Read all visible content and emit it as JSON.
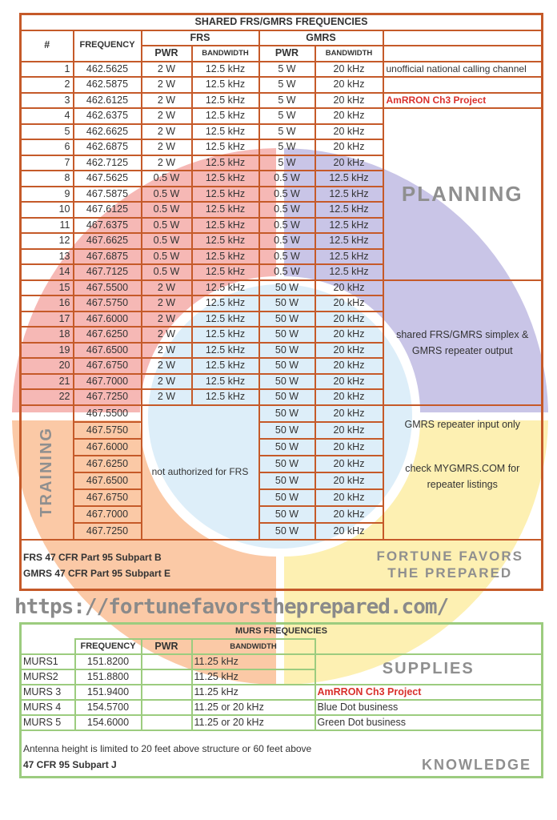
{
  "watermark": {
    "quadrants": [
      {
        "label": "TRAINING",
        "color": "#f6b8b5"
      },
      {
        "label": "PLANNING",
        "color": "#c9c5e7"
      },
      {
        "label": "SUPPLIES",
        "color": "#fdf0b2"
      },
      {
        "label": "KNOWLEDGE",
        "color": "#fbc9a6"
      }
    ],
    "center_color": "#ddeef9",
    "center_lines": [
      "FORTUNE",
      "FAVORS",
      "THE",
      "PREPARED"
    ],
    "url": "https://fortunefavorstheprepared.com/"
  },
  "frs_table": {
    "title": "SHARED FRS/GMRS FREQUENCIES",
    "headers": {
      "num": "#",
      "frequency": "FREQUENCY",
      "frs": "FRS",
      "gmrs": "GMRS",
      "pwr": "PWR",
      "bandwidth": "BANDWIDTH"
    },
    "rows": [
      {
        "n": "1",
        "f": "462.5625",
        "fp": "2 W",
        "fb": "12.5 kHz",
        "gp": "5 W",
        "gb": "20 kHz",
        "note": "unofficial national calling channel"
      },
      {
        "n": "2",
        "f": "462.5875",
        "fp": "2 W",
        "fb": "12.5 kHz",
        "gp": "5 W",
        "gb": "20 kHz",
        "note": ""
      },
      {
        "n": "3",
        "f": "462.6125",
        "fp": "2 W",
        "fb": "12.5 kHz",
        "gp": "5 W",
        "gb": "20 kHz",
        "note": "AmRRON Ch3 Project"
      },
      {
        "n": "4",
        "f": "462.6375",
        "fp": "2 W",
        "fb": "12.5 kHz",
        "gp": "5 W",
        "gb": "20 kHz",
        "note": ""
      },
      {
        "n": "5",
        "f": "462.6625",
        "fp": "2 W",
        "fb": "12.5 kHz",
        "gp": "5 W",
        "gb": "20 kHz",
        "note": ""
      },
      {
        "n": "6",
        "f": "462.6875",
        "fp": "2 W",
        "fb": "12.5 kHz",
        "gp": "5 W",
        "gb": "20 kHz",
        "note": ""
      },
      {
        "n": "7",
        "f": "462.7125",
        "fp": "2 W",
        "fb": "12.5 kHz",
        "gp": "5 W",
        "gb": "20 kHz",
        "note": ""
      },
      {
        "n": "8",
        "f": "467.5625",
        "fp": "0.5 W",
        "fb": "12.5 kHz",
        "gp": "0.5 W",
        "gb": "12.5 kHz",
        "note": ""
      },
      {
        "n": "9",
        "f": "467.5875",
        "fp": "0.5 W",
        "fb": "12.5 kHz",
        "gp": "0.5 W",
        "gb": "12.5 kHz",
        "note": ""
      },
      {
        "n": "10",
        "f": "467.6125",
        "fp": "0.5 W",
        "fb": "12.5 kHz",
        "gp": "0.5 W",
        "gb": "12.5 kHz",
        "note": ""
      },
      {
        "n": "11",
        "f": "467.6375",
        "fp": "0.5 W",
        "fb": "12.5 kHz",
        "gp": "0.5 W",
        "gb": "12.5 kHz",
        "note": ""
      },
      {
        "n": "12",
        "f": "467.6625",
        "fp": "0.5 W",
        "fb": "12.5 kHz",
        "gp": "0.5 W",
        "gb": "12.5 kHz",
        "note": ""
      },
      {
        "n": "13",
        "f": "467.6875",
        "fp": "0.5 W",
        "fb": "12.5 kHz",
        "gp": "0.5 W",
        "gb": "12.5 kHz",
        "note": ""
      },
      {
        "n": "14",
        "f": "467.7125",
        "fp": "0.5 W",
        "fb": "12.5 kHz",
        "gp": "0.5 W",
        "gb": "12.5 kHz",
        "note": ""
      },
      {
        "n": "15",
        "f": "467.5500",
        "fp": "2 W",
        "fb": "12.5 kHz",
        "gp": "50 W",
        "gb": "20 kHz"
      },
      {
        "n": "16",
        "f": "467.5750",
        "fp": "2 W",
        "fb": "12.5 kHz",
        "gp": "50 W",
        "gb": "20 kHz"
      },
      {
        "n": "17",
        "f": "467.6000",
        "fp": "2 W",
        "fb": "12.5 kHz",
        "gp": "50 W",
        "gb": "20 kHz"
      },
      {
        "n": "18",
        "f": "467.6250",
        "fp": "2 W",
        "fb": "12.5 kHz",
        "gp": "50 W",
        "gb": "20 kHz"
      },
      {
        "n": "19",
        "f": "467.6500",
        "fp": "2 W",
        "fb": "12.5 kHz",
        "gp": "50 W",
        "gb": "20 kHz"
      },
      {
        "n": "20",
        "f": "467.6750",
        "fp": "2 W",
        "fb": "12.5 kHz",
        "gp": "50 W",
        "gb": "20 kHz"
      },
      {
        "n": "21",
        "f": "467.7000",
        "fp": "2 W",
        "fb": "12.5 kHz",
        "gp": "50 W",
        "gb": "20 kHz"
      },
      {
        "n": "22",
        "f": "467.7250",
        "fp": "2 W",
        "fb": "12.5 kHz",
        "gp": "50 W",
        "gb": "20 kHz"
      }
    ],
    "shared_note": "shared FRS/GMRS simplex & GMRS repeater output",
    "repeater_rows": [
      {
        "f": "467.5500",
        "gp": "50 W",
        "gb": "20 kHz"
      },
      {
        "f": "467.5750",
        "gp": "50 W",
        "gb": "20 kHz"
      },
      {
        "f": "467.6000",
        "gp": "50 W",
        "gb": "20 kHz"
      },
      {
        "f": "467.6250",
        "gp": "50 W",
        "gb": "20 kHz"
      },
      {
        "f": "467.6500",
        "gp": "50 W",
        "gb": "20 kHz"
      },
      {
        "f": "467.6750",
        "gp": "50 W",
        "gb": "20 kHz"
      },
      {
        "f": "467.7000",
        "gp": "50 W",
        "gb": "20 kHz"
      },
      {
        "f": "467.7250",
        "gp": "50 W",
        "gb": "20 kHz"
      }
    ],
    "not_authorized": "not authorized for FRS",
    "repeater_note": "GMRS repeater input only",
    "listing_note": "check MYGMRS.COM for repeater listings",
    "footer": [
      "FRS 47 CFR Part 95 Subpart B",
      "GMRS 47 CFR Part 95 Subpart E"
    ],
    "border_color": "#c55a29",
    "highlight_color": "#d9302c"
  },
  "murs_table": {
    "title": "MURS FREQUENCIES",
    "headers": {
      "frequency": "FREQUENCY",
      "pwr": "PWR",
      "bandwidth": "BANDWIDTH"
    },
    "rows": [
      {
        "name": "MURS1",
        "f": "151.8200",
        "p": "",
        "bw": "11.25 kHz",
        "note": ""
      },
      {
        "name": "MURS2",
        "f": "151.8800",
        "p": "",
        "bw": "11.25 kHz",
        "note": ""
      },
      {
        "name": "MURS 3",
        "f": "151.9400",
        "p": "",
        "bw": "11.25 kHz",
        "note": "AmRRON Ch3 Project"
      },
      {
        "name": "MURS 4",
        "f": "154.5700",
        "p": "",
        "bw": "11.25 or 20 kHz",
        "note": "Blue Dot business"
      },
      {
        "name": "MURS 5",
        "f": "154.6000",
        "p": "",
        "bw": "11.25 or 20 kHz",
        "note": "Green Dot business"
      }
    ],
    "footer_text": "Antenna height is limited to 20 feet above structure or 60 feet above",
    "footer_bold": "47 CFR 95 Subpart J",
    "border_color": "#9ccc7f"
  }
}
